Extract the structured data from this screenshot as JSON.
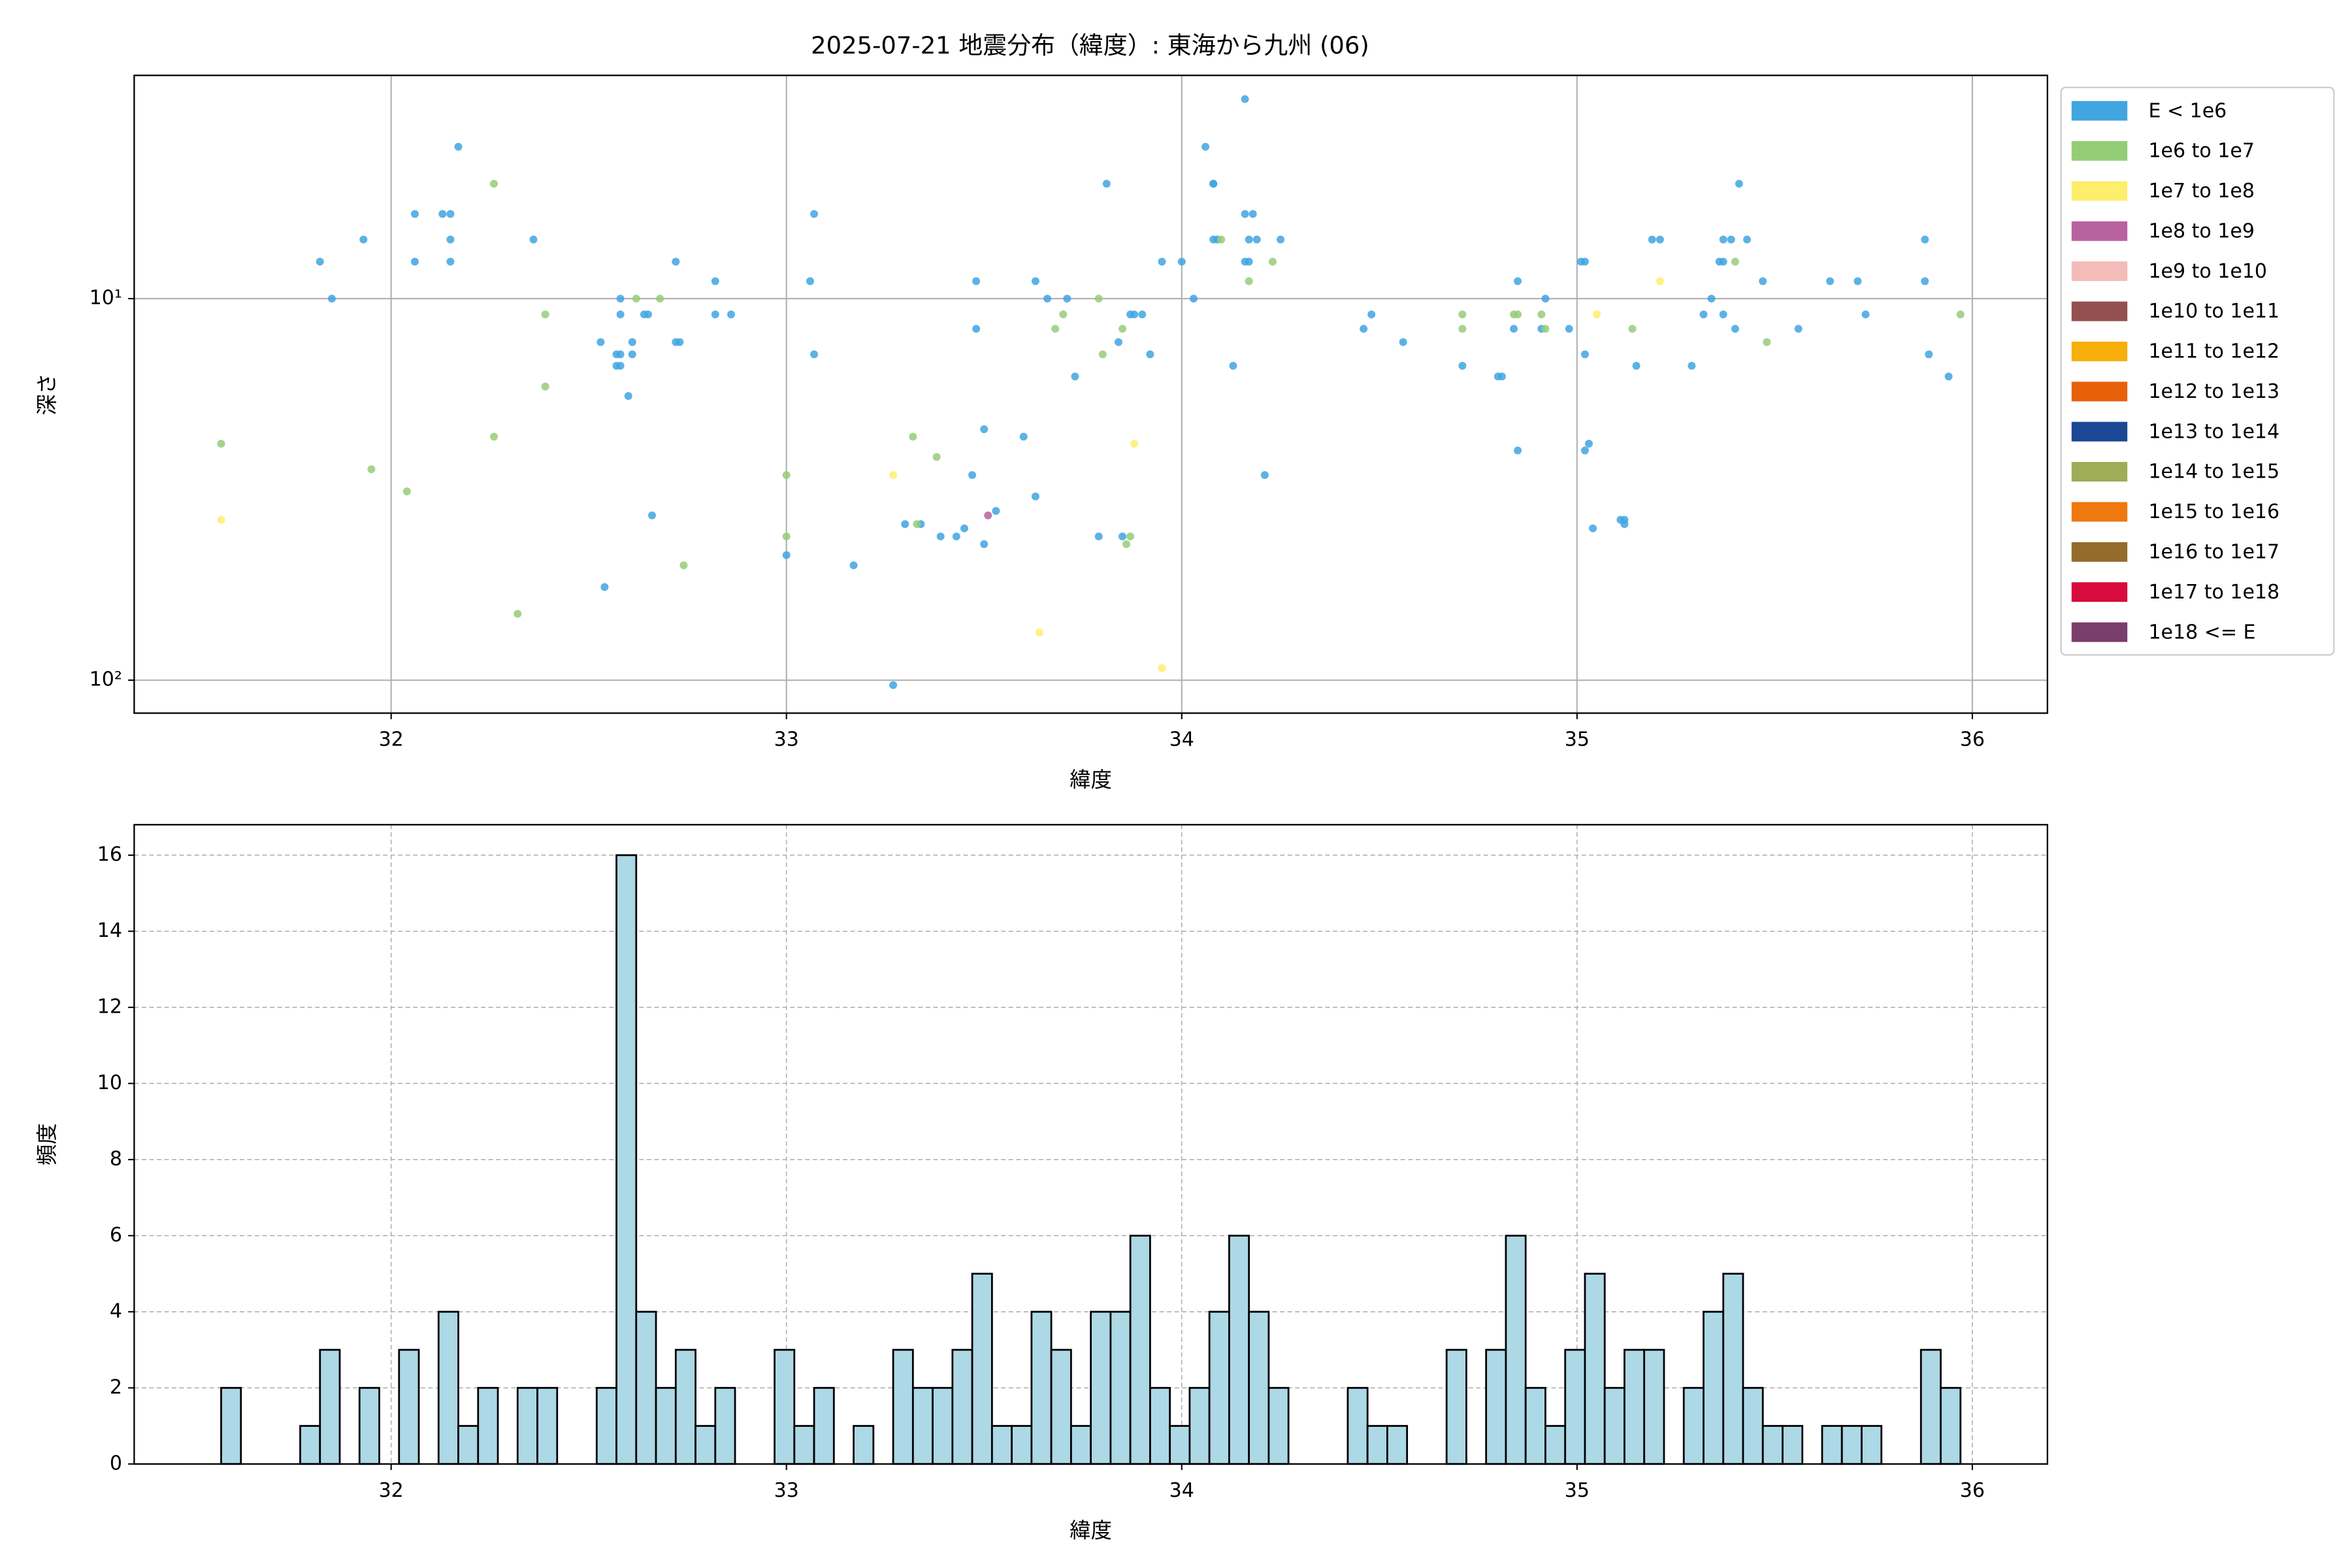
{
  "chart_data": [
    {
      "type": "scatter",
      "title": "2025-07-21 地震分布（緯度）: 東海から九州 (06)",
      "x_label": "緯度",
      "y_label": "深さ",
      "xlim": [
        31.35,
        36.19
      ],
      "xticks": [
        32,
        33,
        34,
        35,
        36
      ],
      "ylim": [
        2.6,
        122
      ],
      "y_inverted": true,
      "y_log": true,
      "yticks": [
        {
          "value": 10,
          "label": "10¹"
        },
        {
          "value": 100,
          "label": "10²"
        }
      ],
      "grid": true,
      "grid_dash": false,
      "legend": "outside-right",
      "series": [
        {
          "name": "E < 1e6",
          "color": "#41a5e0",
          "x": [
            31.82,
            31.85,
            31.93,
            32.06,
            32.06,
            32.13,
            32.15,
            32.15,
            32.15,
            32.17,
            32.36,
            32.53,
            32.54,
            32.57,
            32.58,
            32.57,
            32.58,
            32.58,
            32.58,
            32.6,
            32.61,
            32.61,
            32.64,
            32.65,
            32.66,
            32.72,
            32.72,
            32.73,
            32.82,
            32.82,
            32.86,
            33.0,
            33.06,
            33.07,
            33.07,
            33.17,
            33.27,
            33.3,
            33.34,
            33.39,
            33.43,
            33.45,
            33.47,
            33.48,
            33.48,
            33.5,
            33.5,
            33.53,
            33.6,
            33.63,
            33.63,
            33.66,
            33.71,
            33.73,
            33.79,
            33.81,
            33.84,
            33.85,
            33.87,
            33.88,
            33.9,
            33.92,
            33.95,
            34.0,
            34.03,
            34.06,
            34.08,
            34.08,
            34.08,
            34.09,
            34.13,
            34.16,
            34.16,
            34.17,
            34.18,
            34.17,
            34.19,
            34.16,
            34.21,
            34.25,
            34.46,
            34.48,
            34.56,
            34.71,
            34.8,
            34.81,
            34.85,
            34.84,
            34.85,
            34.91,
            34.92,
            34.98,
            35.01,
            35.02,
            35.02,
            35.02,
            35.03,
            35.04,
            35.11,
            35.12,
            35.12,
            35.15,
            35.19,
            35.21,
            35.29,
            35.32,
            35.34,
            35.36,
            35.37,
            35.37,
            35.37,
            35.39,
            35.4,
            35.41,
            35.43,
            35.47,
            35.56,
            35.64,
            35.71,
            35.73,
            35.88,
            35.88,
            35.89,
            35.94
          ],
          "values": [
            8,
            10,
            7,
            8,
            6,
            6,
            6,
            7,
            8,
            4,
            7,
            13,
            57,
            14,
            14,
            15,
            15,
            10,
            11,
            18,
            13,
            14,
            11,
            11,
            37,
            8,
            13,
            13,
            9,
            11,
            11,
            47,
            9,
            6,
            14,
            50,
            103,
            39,
            39,
            42,
            42,
            40,
            29,
            9,
            12,
            22,
            44,
            36,
            23,
            33,
            9,
            10,
            10,
            16,
            42,
            5,
            13,
            42,
            11,
            11,
            11,
            14,
            8,
            8,
            10,
            4,
            5,
            5,
            7,
            7,
            15,
            6,
            8,
            8,
            6,
            7,
            7,
            3,
            29,
            7,
            12,
            11,
            13,
            15,
            16,
            16,
            9,
            12,
            25,
            12,
            10,
            12,
            8,
            8,
            14,
            25,
            24,
            40,
            38,
            38,
            39,
            15,
            7,
            7,
            15,
            11,
            10,
            8,
            8,
            11,
            7,
            7,
            12,
            5,
            7,
            9,
            12,
            9,
            9,
            11,
            7,
            9,
            14,
            16
          ]
        },
        {
          "name": "1e6 to 1e7",
          "color": "#95cd77",
          "x": [
            31.57,
            31.95,
            32.04,
            32.26,
            32.26,
            32.32,
            32.39,
            32.39,
            32.62,
            32.68,
            32.74,
            33.0,
            33.0,
            33.32,
            33.33,
            33.38,
            33.68,
            33.7,
            33.79,
            33.8,
            33.85,
            33.86,
            33.87,
            34.1,
            34.17,
            34.23,
            34.71,
            34.71,
            34.84,
            34.85,
            34.91,
            34.92,
            35.14,
            35.4,
            35.48,
            35.97
          ],
          "values": [
            24,
            28,
            32,
            23,
            5,
            67,
            11,
            17,
            10,
            10,
            50,
            29,
            42,
            23,
            39,
            26,
            12,
            11,
            10,
            14,
            12,
            44,
            42,
            7,
            9,
            8,
            11,
            12,
            11,
            11,
            11,
            12,
            12,
            8,
            13,
            11
          ]
        },
        {
          "name": "1e7 to 1e8",
          "color": "#fdee6c",
          "x": [
            31.57,
            33.27,
            33.64,
            33.88,
            33.95,
            35.05,
            35.21
          ],
          "values": [
            38,
            29,
            75,
            24,
            93,
            11,
            9
          ]
        },
        {
          "name": "1e8 to 1e9",
          "color": "#b8629f",
          "x": [
            33.51
          ],
          "values": [
            37
          ]
        },
        {
          "name": "1e9 to 1e10",
          "color": "#f4bcb8",
          "x": [],
          "values": []
        },
        {
          "name": "1e10 to 1e11",
          "color": "#93504f",
          "x": [],
          "values": []
        },
        {
          "name": "1e11 to 1e12",
          "color": "#f7b00b",
          "x": [],
          "values": []
        },
        {
          "name": "1e12 to 1e13",
          "color": "#e8600a",
          "x": [],
          "values": []
        },
        {
          "name": "1e13 to 1e14",
          "color": "#1c4895",
          "x": [],
          "values": []
        },
        {
          "name": "1e14 to 1e15",
          "color": "#9ead56",
          "x": [],
          "values": []
        },
        {
          "name": "1e15 to 1e16",
          "color": "#f0790f",
          "x": [],
          "values": []
        },
        {
          "name": "1e16 to 1e17",
          "color": "#946b2b",
          "x": [],
          "values": []
        },
        {
          "name": "1e17 to 1e18",
          "color": "#d70c3c",
          "x": [],
          "values": []
        },
        {
          "name": "1e18 <= E",
          "color": "#7a3e6c",
          "x": [],
          "values": []
        }
      ]
    },
    {
      "type": "histogram",
      "x_label": "緯度",
      "y_label": "頻度",
      "xlim": [
        31.35,
        36.19
      ],
      "xticks": [
        32,
        33,
        34,
        35,
        36
      ],
      "ylim": [
        0,
        16.8
      ],
      "yticks": [
        0,
        2,
        4,
        6,
        8,
        10,
        12,
        14,
        16
      ],
      "grid": true,
      "grid_dash": true,
      "color": "#add8e6",
      "edgecolor": "#000000",
      "bins": [
        31.57,
        31.62,
        31.67,
        31.72,
        31.77,
        31.82,
        31.87,
        31.92,
        31.97,
        32.02,
        32.07,
        32.12,
        32.17,
        32.22,
        32.27,
        32.32,
        32.37,
        32.42,
        32.47,
        32.52,
        32.57,
        32.62,
        32.67,
        32.72,
        32.77,
        32.82,
        32.87,
        32.92,
        32.97,
        33.02,
        33.07,
        33.12,
        33.17,
        33.22,
        33.27,
        33.32,
        33.37,
        33.42,
        33.47,
        33.52,
        33.57,
        33.62,
        33.67,
        33.72,
        33.77,
        33.82,
        33.87,
        33.92,
        33.97,
        34.02,
        34.07,
        34.12,
        34.17,
        34.22,
        34.27,
        34.32,
        34.37,
        34.42,
        34.47,
        34.52,
        34.57,
        34.62,
        34.67,
        34.72,
        34.77,
        34.82,
        34.87,
        34.92,
        34.97,
        35.02,
        35.07,
        35.12,
        35.17,
        35.22,
        35.27,
        35.32,
        35.37,
        35.42,
        35.47,
        35.52,
        35.57,
        35.62,
        35.67,
        35.72,
        35.77,
        35.82,
        35.87,
        35.92,
        35.97
      ],
      "values": [
        2,
        0,
        0,
        0,
        1,
        3,
        0,
        2,
        0,
        3,
        0,
        4,
        1,
        2,
        0,
        2,
        2,
        0,
        0,
        2,
        16,
        4,
        2,
        3,
        1,
        2,
        0,
        0,
        3,
        1,
        2,
        0,
        1,
        0,
        3,
        2,
        2,
        3,
        5,
        1,
        1,
        4,
        3,
        1,
        4,
        4,
        6,
        2,
        1,
        2,
        4,
        6,
        4,
        2,
        0,
        0,
        0,
        2,
        1,
        1,
        0,
        0,
        3,
        0,
        3,
        6,
        2,
        1,
        3,
        5,
        2,
        3,
        3,
        0,
        2,
        4,
        5,
        2,
        1,
        1,
        0,
        1,
        1,
        1,
        0,
        0,
        3,
        2
      ]
    }
  ]
}
